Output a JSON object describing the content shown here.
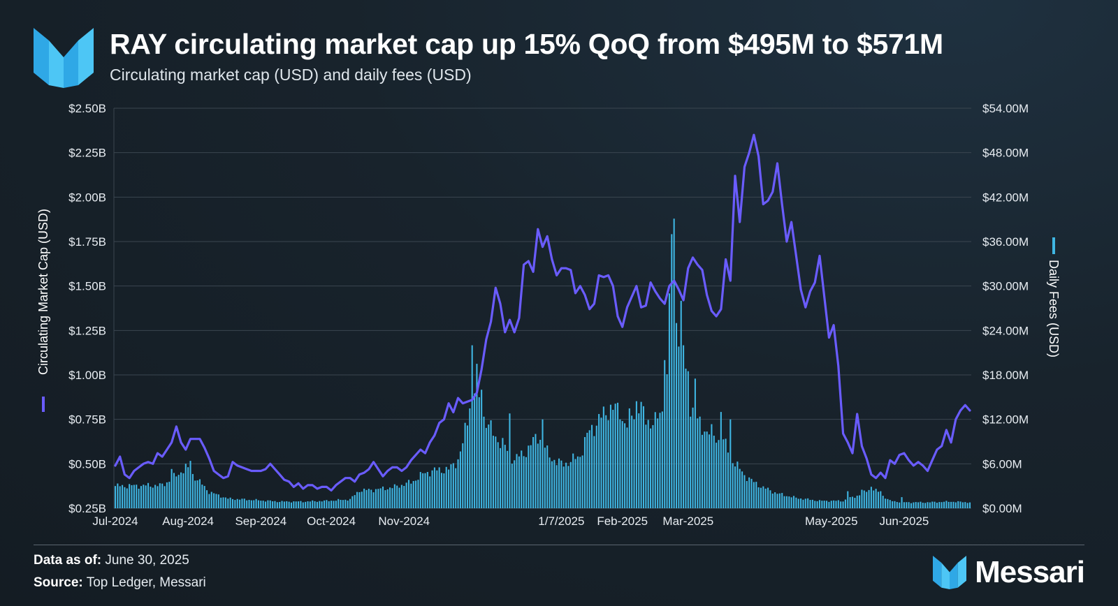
{
  "header": {
    "title": "RAY circulating market cap up 15% QoQ from $495M to $571M",
    "subtitle": "Circulating market cap (USD) and daily fees (USD)"
  },
  "footer": {
    "data_as_of_label": "Data as of:",
    "data_as_of_value": "June 30, 2025",
    "source_label": "Source:",
    "source_value": "Top Ledger, Messari",
    "brand": "Messari"
  },
  "colors": {
    "line": "#6a5cff",
    "bars": "#3fb6e3",
    "grid": "#3b4650",
    "logo": "#2fa8e6"
  },
  "chart_data": {
    "type": "bar+line",
    "title": "RAY circulating market cap up 15% QoQ from $495M to $571M",
    "ylabel_left": "Circulating Market Cap (USD)",
    "ylabel_right": "Daily Fees (USD)",
    "ylim_left": [
      0.25,
      2.5
    ],
    "ylim_right": [
      0,
      54
    ],
    "left_ticks": [
      "$0.25B",
      "$0.50B",
      "$0.75B",
      "$1.00B",
      "$1.25B",
      "$1.50B",
      "$1.75B",
      "$2.00B",
      "$2.25B",
      "$2.50B"
    ],
    "right_ticks": [
      "$0.00M",
      "$6.00M",
      "$12.00M",
      "$18.00M",
      "$24.00M",
      "$30.00M",
      "$36.00M",
      "$42.00M",
      "$48.00M",
      "$54.00M"
    ],
    "x_tick_labels": [
      "Jul-2024",
      "Aug-2024",
      "Sep-2024",
      "Oct-2024",
      "Nov-2024",
      "1/7/2025",
      "Feb-2025",
      "Mar-2025",
      "May-2025",
      "Jun-2025"
    ],
    "x_tick_days": [
      0,
      31,
      62,
      92,
      123,
      190,
      216,
      244,
      305,
      336
    ],
    "days": 365,
    "series": [
      {
        "name": "Circulating Market Cap (USD)",
        "kind": "line",
        "axis": "left",
        "unit": "B USD",
        "points": [
          [
            0,
            0.49
          ],
          [
            2,
            0.54
          ],
          [
            4,
            0.44
          ],
          [
            6,
            0.42
          ],
          [
            8,
            0.46
          ],
          [
            10,
            0.48
          ],
          [
            12,
            0.5
          ],
          [
            14,
            0.51
          ],
          [
            16,
            0.5
          ],
          [
            18,
            0.56
          ],
          [
            20,
            0.54
          ],
          [
            22,
            0.58
          ],
          [
            24,
            0.62
          ],
          [
            26,
            0.71
          ],
          [
            28,
            0.62
          ],
          [
            30,
            0.58
          ],
          [
            32,
            0.64
          ],
          [
            34,
            0.64
          ],
          [
            36,
            0.64
          ],
          [
            38,
            0.59
          ],
          [
            40,
            0.53
          ],
          [
            42,
            0.46
          ],
          [
            44,
            0.44
          ],
          [
            46,
            0.42
          ],
          [
            48,
            0.43
          ],
          [
            50,
            0.51
          ],
          [
            52,
            0.49
          ],
          [
            54,
            0.48
          ],
          [
            56,
            0.47
          ],
          [
            58,
            0.46
          ],
          [
            60,
            0.46
          ],
          [
            62,
            0.46
          ],
          [
            64,
            0.47
          ],
          [
            66,
            0.5
          ],
          [
            68,
            0.47
          ],
          [
            70,
            0.44
          ],
          [
            72,
            0.41
          ],
          [
            74,
            0.4
          ],
          [
            76,
            0.37
          ],
          [
            78,
            0.39
          ],
          [
            80,
            0.36
          ],
          [
            82,
            0.38
          ],
          [
            84,
            0.38
          ],
          [
            86,
            0.36
          ],
          [
            88,
            0.37
          ],
          [
            90,
            0.37
          ],
          [
            92,
            0.35
          ],
          [
            94,
            0.38
          ],
          [
            96,
            0.4
          ],
          [
            98,
            0.42
          ],
          [
            100,
            0.42
          ],
          [
            102,
            0.4
          ],
          [
            104,
            0.44
          ],
          [
            106,
            0.45
          ],
          [
            108,
            0.47
          ],
          [
            110,
            0.51
          ],
          [
            112,
            0.47
          ],
          [
            114,
            0.43
          ],
          [
            116,
            0.46
          ],
          [
            118,
            0.48
          ],
          [
            120,
            0.48
          ],
          [
            122,
            0.46
          ],
          [
            124,
            0.48
          ],
          [
            126,
            0.52
          ],
          [
            128,
            0.55
          ],
          [
            130,
            0.58
          ],
          [
            132,
            0.56
          ],
          [
            134,
            0.62
          ],
          [
            136,
            0.66
          ],
          [
            138,
            0.73
          ],
          [
            140,
            0.75
          ],
          [
            142,
            0.84
          ],
          [
            144,
            0.79
          ],
          [
            146,
            0.87
          ],
          [
            148,
            0.84
          ],
          [
            150,
            0.85
          ],
          [
            152,
            0.86
          ],
          [
            154,
            0.9
          ],
          [
            156,
            1.03
          ],
          [
            158,
            1.2
          ],
          [
            160,
            1.3
          ],
          [
            162,
            1.49
          ],
          [
            164,
            1.4
          ],
          [
            166,
            1.24
          ],
          [
            168,
            1.31
          ],
          [
            170,
            1.24
          ],
          [
            172,
            1.32
          ],
          [
            174,
            1.62
          ],
          [
            176,
            1.64
          ],
          [
            178,
            1.58
          ],
          [
            180,
            1.82
          ],
          [
            182,
            1.72
          ],
          [
            184,
            1.78
          ],
          [
            186,
            1.65
          ],
          [
            188,
            1.56
          ],
          [
            190,
            1.6
          ],
          [
            192,
            1.6
          ],
          [
            194,
            1.59
          ],
          [
            196,
            1.46
          ],
          [
            198,
            1.5
          ],
          [
            200,
            1.45
          ],
          [
            202,
            1.37
          ],
          [
            204,
            1.4
          ],
          [
            206,
            1.56
          ],
          [
            208,
            1.55
          ],
          [
            210,
            1.56
          ],
          [
            212,
            1.5
          ],
          [
            214,
            1.33
          ],
          [
            216,
            1.27
          ],
          [
            218,
            1.38
          ],
          [
            220,
            1.44
          ],
          [
            222,
            1.5
          ],
          [
            224,
            1.38
          ],
          [
            226,
            1.39
          ],
          [
            228,
            1.52
          ],
          [
            230,
            1.47
          ],
          [
            232,
            1.43
          ],
          [
            234,
            1.4
          ],
          [
            236,
            1.5
          ],
          [
            238,
            1.53
          ],
          [
            240,
            1.48
          ],
          [
            242,
            1.42
          ],
          [
            244,
            1.6
          ],
          [
            246,
            1.66
          ],
          [
            248,
            1.62
          ],
          [
            250,
            1.59
          ],
          [
            252,
            1.45
          ],
          [
            254,
            1.36
          ],
          [
            256,
            1.33
          ],
          [
            258,
            1.37
          ],
          [
            260,
            1.65
          ],
          [
            262,
            1.53
          ],
          [
            264,
            2.12
          ],
          [
            266,
            1.86
          ],
          [
            268,
            2.17
          ],
          [
            270,
            2.25
          ],
          [
            272,
            2.35
          ],
          [
            274,
            2.23
          ],
          [
            276,
            1.96
          ],
          [
            278,
            1.98
          ],
          [
            280,
            2.03
          ],
          [
            282,
            2.19
          ],
          [
            284,
            1.96
          ],
          [
            286,
            1.75
          ],
          [
            288,
            1.86
          ],
          [
            290,
            1.67
          ],
          [
            292,
            1.48
          ],
          [
            294,
            1.38
          ],
          [
            296,
            1.47
          ],
          [
            298,
            1.52
          ],
          [
            300,
            1.67
          ],
          [
            302,
            1.44
          ],
          [
            304,
            1.21
          ],
          [
            306,
            1.28
          ],
          [
            308,
            1.05
          ],
          [
            310,
            0.67
          ],
          [
            312,
            0.62
          ],
          [
            314,
            0.56
          ],
          [
            316,
            0.78
          ],
          [
            318,
            0.6
          ],
          [
            320,
            0.53
          ],
          [
            322,
            0.44
          ],
          [
            324,
            0.42
          ],
          [
            326,
            0.45
          ],
          [
            328,
            0.42
          ],
          [
            330,
            0.52
          ],
          [
            332,
            0.5
          ],
          [
            334,
            0.55
          ],
          [
            336,
            0.56
          ],
          [
            338,
            0.52
          ],
          [
            340,
            0.49
          ],
          [
            342,
            0.51
          ],
          [
            344,
            0.49
          ],
          [
            346,
            0.46
          ],
          [
            348,
            0.52
          ],
          [
            350,
            0.58
          ],
          [
            352,
            0.6
          ],
          [
            354,
            0.69
          ],
          [
            356,
            0.62
          ],
          [
            358,
            0.75
          ],
          [
            360,
            0.8
          ],
          [
            362,
            0.83
          ],
          [
            364,
            0.8
          ]
        ]
      },
      {
        "name": "Daily Fees (USD)",
        "kind": "bar",
        "axis": "right",
        "unit": "M USD",
        "anchors": [
          [
            0,
            3.0
          ],
          [
            20,
            3.1
          ],
          [
            26,
            4.4
          ],
          [
            30,
            5.5
          ],
          [
            34,
            4.2
          ],
          [
            40,
            2.2
          ],
          [
            48,
            1.3
          ],
          [
            60,
            1.1
          ],
          [
            70,
            0.9
          ],
          [
            80,
            0.9
          ],
          [
            90,
            1.0
          ],
          [
            100,
            1.2
          ],
          [
            104,
            2.4
          ],
          [
            110,
            2.5
          ],
          [
            118,
            2.8
          ],
          [
            126,
            3.5
          ],
          [
            132,
            4.8
          ],
          [
            138,
            5.2
          ],
          [
            142,
            5.2
          ],
          [
            146,
            6.6
          ],
          [
            148,
            8.6
          ],
          [
            150,
            12.0
          ],
          [
            152,
            17.0
          ],
          [
            154,
            15.5
          ],
          [
            156,
            13.0
          ],
          [
            160,
            10.5
          ],
          [
            166,
            8.2
          ],
          [
            170,
            6.5
          ],
          [
            176,
            8.0
          ],
          [
            180,
            10.0
          ],
          [
            184,
            7.5
          ],
          [
            188,
            6.2
          ],
          [
            190,
            6.0
          ],
          [
            194,
            6.3
          ],
          [
            198,
            7.2
          ],
          [
            202,
            10.5
          ],
          [
            206,
            11.8
          ],
          [
            210,
            13.5
          ],
          [
            214,
            13.2
          ],
          [
            218,
            11.0
          ],
          [
            222,
            14.5
          ],
          [
            226,
            12.0
          ],
          [
            230,
            11.5
          ],
          [
            234,
            14.0
          ],
          [
            236,
            20.0
          ],
          [
            238,
            37.0
          ],
          [
            240,
            23.0
          ],
          [
            242,
            19.5
          ],
          [
            244,
            15.0
          ],
          [
            248,
            11.5
          ],
          [
            252,
            10.5
          ],
          [
            256,
            9.5
          ],
          [
            260,
            8.5
          ],
          [
            264,
            6.0
          ],
          [
            268,
            4.5
          ],
          [
            272,
            3.5
          ],
          [
            276,
            2.8
          ],
          [
            282,
            2.0
          ],
          [
            290,
            1.4
          ],
          [
            300,
            1.0
          ],
          [
            310,
            1.0
          ],
          [
            314,
            1.5
          ],
          [
            318,
            1.9
          ],
          [
            322,
            2.8
          ],
          [
            326,
            1.9
          ],
          [
            330,
            1.0
          ],
          [
            336,
            0.8
          ],
          [
            346,
            0.8
          ],
          [
            356,
            0.9
          ],
          [
            364,
            0.8
          ]
        ],
        "spikes": [
          [
            24,
            5.3
          ],
          [
            32,
            6.4
          ],
          [
            152,
            22.0
          ],
          [
            154,
            19.5
          ],
          [
            156,
            16.0
          ],
          [
            168,
            12.8
          ],
          [
            182,
            12.0
          ],
          [
            215,
            12.0
          ],
          [
            221,
            12.0
          ],
          [
            234,
            20.0
          ],
          [
            236,
            29.0
          ],
          [
            237,
            37.0
          ],
          [
            239,
            25.0
          ],
          [
            241,
            28.0
          ],
          [
            242,
            22.0
          ],
          [
            244,
            18.5
          ],
          [
            247,
            17.5
          ],
          [
            258,
            13.0
          ],
          [
            262,
            12.0
          ],
          [
            312,
            2.3
          ],
          [
            318,
            2.5
          ],
          [
            322,
            2.9
          ],
          [
            326,
            2.3
          ],
          [
            335,
            1.5
          ]
        ]
      }
    ]
  }
}
